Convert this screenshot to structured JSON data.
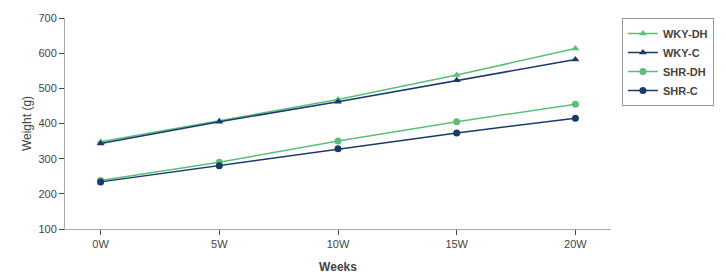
{
  "chart_data": {
    "type": "line",
    "x": [
      0,
      5,
      10,
      15,
      20
    ],
    "xlabel": "Weeks",
    "ylabel": "Weight (g)",
    "xlim": [
      -1.5,
      21.5
    ],
    "xticks": [
      {
        "value": 0,
        "label": "0W"
      },
      {
        "value": 5,
        "label": "5W"
      },
      {
        "value": 10,
        "label": "10W"
      },
      {
        "value": 15,
        "label": "15W"
      },
      {
        "value": 20,
        "label": "20W"
      }
    ],
    "ylim": [
      100,
      700
    ],
    "yticks": [
      100,
      200,
      300,
      400,
      500,
      600,
      700
    ],
    "grid": false,
    "legend": "upper right",
    "series": [
      {
        "name": "WKY-DH",
        "color": "#5abf7a",
        "marker": "triangle-up",
        "values": [
          348,
          408,
          468,
          538,
          613
        ]
      },
      {
        "name": "WKY-C",
        "color": "#1a3a6b",
        "marker": "triangle-up",
        "values": [
          343,
          405,
          462,
          523,
          582
        ]
      },
      {
        "name": "SHR-DH",
        "color": "#5abf7a",
        "marker": "circle",
        "values": [
          238,
          290,
          350,
          405,
          455
        ]
      },
      {
        "name": "SHR-C",
        "color": "#1a3a6b",
        "marker": "circle",
        "values": [
          234,
          280,
          328,
          373,
          415
        ]
      }
    ]
  }
}
